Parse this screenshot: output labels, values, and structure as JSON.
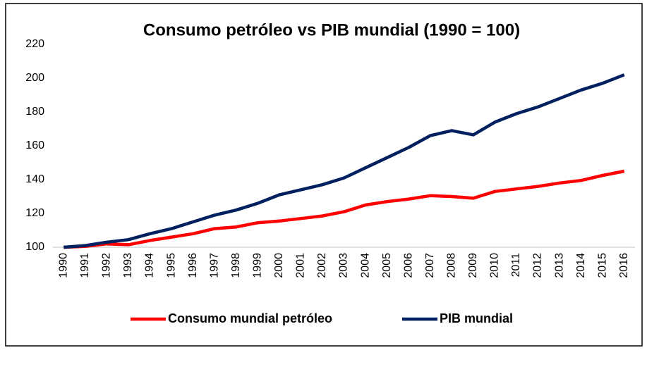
{
  "chart_data": {
    "type": "line",
    "title": "Consumo petróleo vs PIB mundial (1990 = 100)",
    "categories": [
      "1990",
      "1991",
      "1992",
      "1993",
      "1994",
      "1995",
      "1996",
      "1997",
      "1998",
      "1999",
      "2000",
      "2001",
      "2002",
      "2003",
      "2004",
      "2005",
      "2006",
      "2007",
      "2008",
      "2009",
      "2010",
      "2011",
      "2012",
      "2013",
      "2014",
      "2015",
      "2016"
    ],
    "series": [
      {
        "name": "Consumo mundial petróleo",
        "color": "#ff0000",
        "values": [
          100,
          100.5,
          102,
          101.5,
          104,
          106,
          108,
          111,
          112,
          114.5,
          115.5,
          117,
          118.5,
          121,
          125,
          127,
          128.5,
          130.5,
          130,
          129,
          133,
          134.5,
          136,
          138,
          139.5,
          142.5,
          145
        ]
      },
      {
        "name": "PIB mundial",
        "color": "#002060",
        "values": [
          100,
          101,
          103,
          104.5,
          108,
          111,
          115,
          119,
          122,
          126,
          131,
          134,
          137,
          141,
          147,
          153,
          159,
          166,
          169,
          166.5,
          174,
          179,
          183,
          188,
          193,
          197,
          202
        ]
      }
    ],
    "ylim": [
      100,
      220
    ],
    "yticks": [
      100,
      120,
      140,
      160,
      180,
      200,
      220
    ],
    "grid": false,
    "legend": "bottom"
  }
}
